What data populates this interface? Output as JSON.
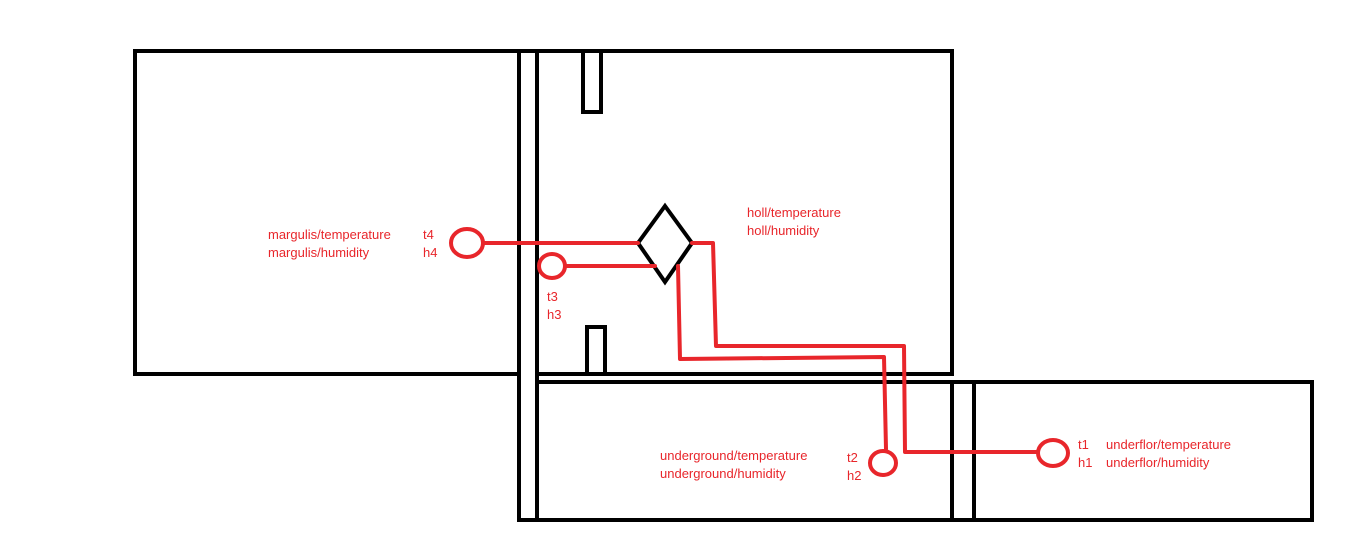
{
  "colors": {
    "wire": "#e8262b",
    "wall": "#000000",
    "background": "#ffffff"
  },
  "hub": {
    "icon": "diamond-hub-icon"
  },
  "sensors": {
    "margulis": {
      "id_t": "t4",
      "id_h": "h4",
      "topic_temperature": "margulis/temperature",
      "topic_humidity": "margulis/humidity"
    },
    "t3": {
      "id_t": "t3",
      "id_h": "h3"
    },
    "holl": {
      "topic_temperature": "holl/temperature",
      "topic_humidity": "holl/humidity"
    },
    "underground": {
      "id_t": "t2",
      "id_h": "h2",
      "topic_temperature": "underground/temperature",
      "topic_humidity": "underground/humidity"
    },
    "underflor": {
      "id_t": "t1",
      "id_h": "h1",
      "topic_temperature": "underflor/temperature",
      "topic_humidity": "underflor/humidity"
    }
  }
}
